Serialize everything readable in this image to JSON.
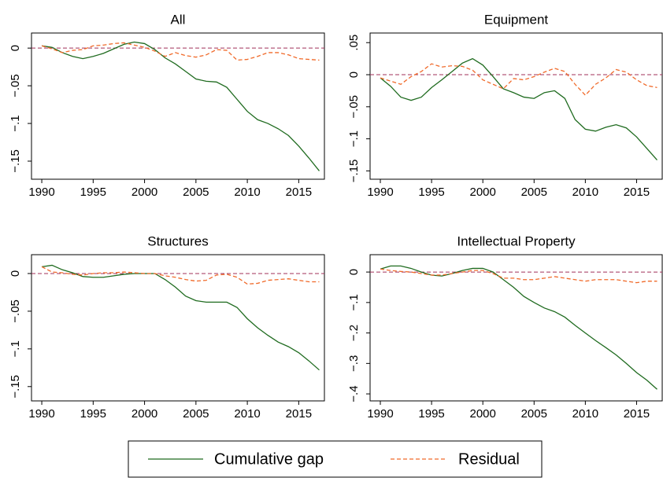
{
  "chart_data": [
    {
      "type": "line",
      "title": "All",
      "x": [
        1990,
        1991,
        1992,
        1993,
        1994,
        1995,
        1996,
        1997,
        1998,
        1999,
        2000,
        2001,
        2002,
        2003,
        2004,
        2005,
        2006,
        2007,
        2008,
        2009,
        2010,
        2011,
        2012,
        2013,
        2014,
        2015,
        2016,
        2017
      ],
      "series": [
        {
          "name": "Cumulative gap",
          "color": "#1f6b1f",
          "dash": "solid",
          "values": [
            0.003,
            0.001,
            -0.006,
            -0.011,
            -0.014,
            -0.011,
            -0.007,
            -0.001,
            0.005,
            0.008,
            0.006,
            -0.002,
            -0.013,
            -0.021,
            -0.031,
            -0.041,
            -0.044,
            -0.045,
            -0.052,
            -0.068,
            -0.084,
            -0.095,
            -0.1,
            -0.107,
            -0.116,
            -0.13,
            -0.146,
            -0.163
          ]
        },
        {
          "name": "Residual",
          "color": "#f06a2a",
          "dash": "dashed",
          "values": [
            0.003,
            -0.001,
            -0.006,
            -0.003,
            -0.002,
            0.003,
            0.004,
            0.006,
            0.007,
            0.004,
            0.001,
            -0.004,
            -0.011,
            -0.006,
            -0.01,
            -0.012,
            -0.009,
            -0.002,
            -0.003,
            -0.016,
            -0.015,
            -0.011,
            -0.006,
            -0.006,
            -0.009,
            -0.014,
            -0.015,
            -0.016
          ]
        }
      ],
      "reference_line": 0,
      "reference_color": "#a0305a",
      "xlim": [
        1989,
        2017.5
      ],
      "xticks": [
        1990,
        1995,
        2000,
        2005,
        2010,
        2015
      ],
      "ylim": [
        -0.174,
        0.02
      ],
      "yticks": [
        0,
        {
          "value": -0.05,
          "label": "−.05"
        },
        {
          "value": -0.1,
          "label": "−.1"
        },
        {
          "value": -0.15,
          "label": "−.15"
        }
      ]
    },
    {
      "type": "line",
      "title": "Equipment",
      "x": [
        1990,
        1991,
        1992,
        1993,
        1994,
        1995,
        1996,
        1997,
        1998,
        1999,
        2000,
        2001,
        2002,
        2003,
        2004,
        2005,
        2006,
        2007,
        2008,
        2009,
        2010,
        2011,
        2012,
        2013,
        2014,
        2015,
        2016,
        2017
      ],
      "series": [
        {
          "color": "#1f6b1f",
          "dash": "solid",
          "values": [
            -0.005,
            -0.018,
            -0.035,
            -0.04,
            -0.035,
            -0.02,
            -0.008,
            0.005,
            0.018,
            0.025,
            0.015,
            -0.003,
            -0.022,
            -0.028,
            -0.035,
            -0.037,
            -0.028,
            -0.025,
            -0.037,
            -0.07,
            -0.085,
            -0.088,
            -0.082,
            -0.078,
            -0.083,
            -0.097,
            -0.115,
            -0.133
          ]
        },
        {
          "color": "#f06a2a",
          "dash": "dashed",
          "values": [
            -0.005,
            -0.01,
            -0.015,
            -0.003,
            0.005,
            0.017,
            0.012,
            0.014,
            0.013,
            0.007,
            -0.008,
            -0.015,
            -0.022,
            -0.006,
            -0.008,
            -0.003,
            0.004,
            0.01,
            0.005,
            -0.015,
            -0.032,
            -0.015,
            -0.005,
            0.008,
            0.004,
            -0.008,
            -0.017,
            -0.02
          ]
        }
      ],
      "reference_line": 0,
      "reference_color": "#a0305a",
      "xlim": [
        1989,
        2017.5
      ],
      "xticks": [
        1990,
        1995,
        2000,
        2005,
        2010,
        2015
      ],
      "ylim": [
        -0.163,
        0.065
      ],
      "yticks": [
        {
          "value": 0.05,
          "label": ".05"
        },
        0,
        {
          "value": -0.05,
          "label": "−.05"
        },
        {
          "value": -0.1,
          "label": "−.1"
        },
        {
          "value": -0.15,
          "label": "−.15"
        }
      ]
    },
    {
      "type": "line",
      "title": "Structures",
      "x": [
        1990,
        1991,
        1992,
        1993,
        1994,
        1995,
        1996,
        1997,
        1998,
        1999,
        2000,
        2001,
        2002,
        2003,
        2004,
        2005,
        2006,
        2007,
        2008,
        2009,
        2010,
        2011,
        2012,
        2013,
        2014,
        2015,
        2016,
        2017
      ],
      "series": [
        {
          "color": "#1f6b1f",
          "dash": "solid",
          "values": [
            0.009,
            0.011,
            0.005,
            0.001,
            -0.004,
            -0.005,
            -0.005,
            -0.003,
            -0.001,
            0,
            0,
            0,
            -0.008,
            -0.018,
            -0.03,
            -0.036,
            -0.038,
            -0.038,
            -0.038,
            -0.045,
            -0.06,
            -0.072,
            -0.082,
            -0.091,
            -0.097,
            -0.105,
            -0.116,
            -0.128
          ]
        },
        {
          "color": "#f06a2a",
          "dash": "dashed",
          "values": [
            0.009,
            0.002,
            0.001,
            -0.001,
            -0.002,
            0,
            0.001,
            0.001,
            0.002,
            0.001,
            0,
            0,
            -0.003,
            -0.005,
            -0.008,
            -0.01,
            -0.009,
            -0.002,
            -0.001,
            -0.005,
            -0.014,
            -0.013,
            -0.009,
            -0.008,
            -0.007,
            -0.009,
            -0.011,
            -0.011
          ]
        }
      ],
      "reference_line": 0,
      "reference_color": "#a0305a",
      "xlim": [
        1989,
        2017.5
      ],
      "xticks": [
        1990,
        1995,
        2000,
        2005,
        2010,
        2015
      ],
      "ylim": [
        -0.169,
        0.025
      ],
      "yticks": [
        0,
        {
          "value": -0.05,
          "label": "−.05"
        },
        {
          "value": -0.1,
          "label": "−.1"
        },
        {
          "value": -0.15,
          "label": "−.15"
        }
      ]
    },
    {
      "type": "line",
      "title": "Intellectual Property",
      "x": [
        1990,
        1991,
        1992,
        1993,
        1994,
        1995,
        1996,
        1997,
        1998,
        1999,
        2000,
        2001,
        2002,
        2003,
        2004,
        2005,
        2006,
        2007,
        2008,
        2009,
        2010,
        2011,
        2012,
        2013,
        2014,
        2015,
        2016,
        2017
      ],
      "series": [
        {
          "color": "#1f6b1f",
          "dash": "solid",
          "values": [
            0.01,
            0.02,
            0.02,
            0.012,
            0,
            -0.01,
            -0.013,
            -0.005,
            0.005,
            0.012,
            0.012,
            0,
            -0.025,
            -0.05,
            -0.08,
            -0.1,
            -0.118,
            -0.13,
            -0.148,
            -0.175,
            -0.2,
            -0.225,
            -0.248,
            -0.272,
            -0.3,
            -0.33,
            -0.355,
            -0.385
          ]
        },
        {
          "color": "#f06a2a",
          "dash": "dashed",
          "values": [
            0.01,
            0.005,
            0.002,
            0,
            -0.005,
            -0.01,
            -0.01,
            -0.005,
            0,
            0.005,
            0.005,
            -0.005,
            -0.02,
            -0.02,
            -0.025,
            -0.025,
            -0.02,
            -0.015,
            -0.02,
            -0.025,
            -0.03,
            -0.025,
            -0.025,
            -0.025,
            -0.03,
            -0.035,
            -0.03,
            -0.03
          ]
        }
      ],
      "reference_line": 0,
      "reference_color": "#a0305a",
      "xlim": [
        1989,
        2017.5
      ],
      "xticks": [
        1990,
        1995,
        2000,
        2005,
        2010,
        2015
      ],
      "ylim": [
        -0.423,
        0.057
      ],
      "yticks": [
        0,
        {
          "value": -0.1,
          "label": "−.1"
        },
        {
          "value": -0.2,
          "label": "−.2"
        },
        {
          "value": -0.3,
          "label": "−.3"
        },
        {
          "value": -0.4,
          "label": "−.4"
        }
      ]
    }
  ]
}
